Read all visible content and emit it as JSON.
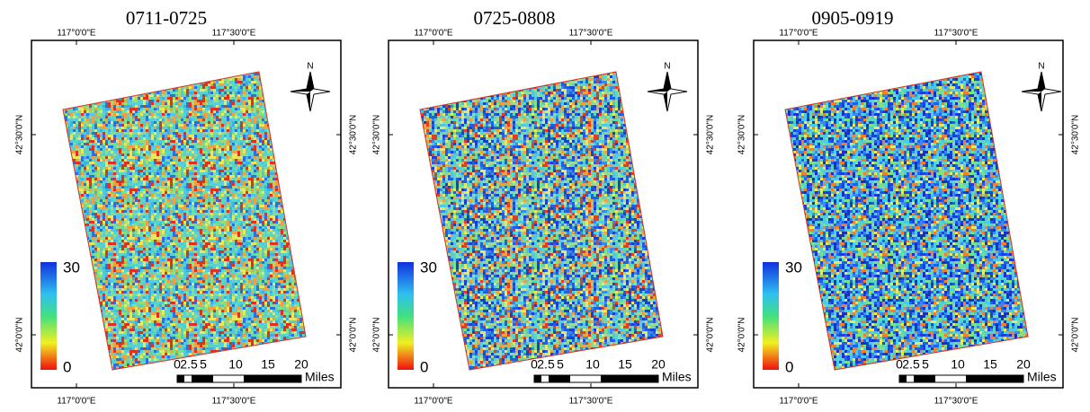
{
  "panels": [
    {
      "title": "0711-0725",
      "top_labels": [
        "117°0'0\"E",
        "117°30'0\"E"
      ],
      "bottom_labels": [
        "117°0'0\"E",
        "117°30'0\"E"
      ],
      "left_labels": [
        "42°30'0\"N",
        "42°0'0\"N"
      ],
      "right_labels": [
        "42°30'0\"N",
        "42°0'0\"N"
      ],
      "legend": {
        "max": "30",
        "min": "0"
      },
      "scale": {
        "labels": [
          "0",
          "2.5",
          "5",
          "10",
          "15",
          "20"
        ],
        "unit": "Miles"
      },
      "north": "N"
    },
    {
      "title": "0725-0808",
      "top_labels": [
        "117°0'0\"E",
        "117°30'0\"E"
      ],
      "bottom_labels": [
        "117°0'0\"E",
        "117°30'0\"E"
      ],
      "left_labels": [
        "42°30'0\"N",
        "42°0'0\"N"
      ],
      "right_labels": [
        "42°30'0\"N",
        "42°0'0\"N"
      ],
      "legend": {
        "max": "30",
        "min": "0"
      },
      "scale": {
        "labels": [
          "0",
          "2.5",
          "5",
          "10",
          "15",
          "20"
        ],
        "unit": "Miles"
      },
      "north": "N"
    },
    {
      "title": "0905-0919",
      "top_labels": [
        "117°0'0\"E",
        "117°30'0\"E"
      ],
      "bottom_labels": [
        "117°0'0\"E",
        "117°30'0\"E"
      ],
      "left_labels": [
        "42°30'0\"N",
        "42°0'0\"N"
      ],
      "right_labels": [
        "42°30'0\"N",
        "42°0'0\"N"
      ],
      "legend": {
        "max": "30",
        "min": "0"
      },
      "scale": {
        "labels": [
          "0",
          "2.5",
          "5",
          "10",
          "15",
          "20"
        ],
        "unit": "Miles"
      },
      "north": "N"
    }
  ]
}
